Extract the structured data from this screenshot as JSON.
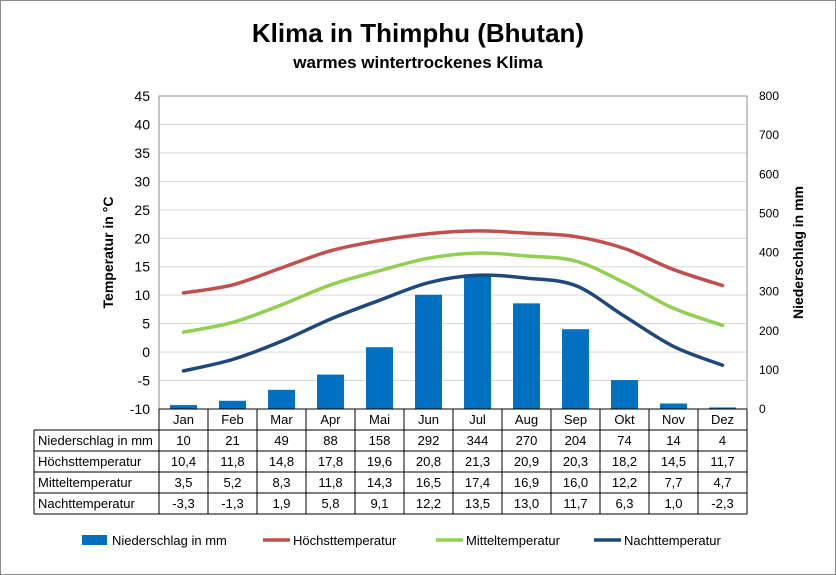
{
  "title": "Klima in Thimphu (Bhutan)",
  "subtitle": "warmes wintertrockenes Klima",
  "chart_data": {
    "type": "bar+line",
    "categories": [
      "Jan",
      "Feb",
      "Mar",
      "Apr",
      "Mai",
      "Jun",
      "Jul",
      "Aug",
      "Sep",
      "Okt",
      "Nov",
      "Dez"
    ],
    "ylabel_left": "Temperatur in °C",
    "ylabel_right": "Niederschlag in mm",
    "ylim_left": [
      -10,
      45
    ],
    "yticks_left": [
      "45",
      "40",
      "35",
      "30",
      "25",
      "20",
      "15",
      "10",
      "5",
      "0",
      "-5",
      "-10"
    ],
    "ylim_right": [
      0,
      800
    ],
    "yticks_right": [
      "800",
      "700",
      "600",
      "500",
      "400",
      "300",
      "200",
      "100",
      "0"
    ],
    "grid": "horizontal",
    "legend_position": "bottom",
    "bars": {
      "name": "Niederschlag in mm",
      "axis": "right",
      "color": "#0070c0",
      "values": [
        10,
        21,
        49,
        88,
        158,
        292,
        344,
        270,
        204,
        74,
        14,
        4
      ],
      "labels": [
        "10",
        "21",
        "49",
        "88",
        "158",
        "292",
        "344",
        "270",
        "204",
        "74",
        "14",
        "4"
      ]
    },
    "series": [
      {
        "name": "Höchsttemperatur",
        "axis": "left",
        "color": "#c0504d",
        "values": [
          10.4,
          11.8,
          14.8,
          17.8,
          19.6,
          20.8,
          21.3,
          20.9,
          20.3,
          18.2,
          14.5,
          11.7
        ],
        "labels": [
          "10,4",
          "11,8",
          "14,8",
          "17,8",
          "19,6",
          "20,8",
          "21,3",
          "20,9",
          "20,3",
          "18,2",
          "14,5",
          "11,7"
        ]
      },
      {
        "name": "Mitteltemperatur",
        "axis": "left",
        "color": "#92d050",
        "values": [
          3.5,
          5.2,
          8.3,
          11.8,
          14.3,
          16.5,
          17.4,
          16.9,
          16.0,
          12.2,
          7.7,
          4.7
        ],
        "labels": [
          "3,5",
          "5,2",
          "8,3",
          "11,8",
          "14,3",
          "16,5",
          "17,4",
          "16,9",
          "16,0",
          "12,2",
          "7,7",
          "4,7"
        ]
      },
      {
        "name": "Nachttemperatur",
        "axis": "left",
        "color": "#1f497d",
        "values": [
          -3.3,
          -1.3,
          1.9,
          5.8,
          9.1,
          12.2,
          13.5,
          13.0,
          11.7,
          6.3,
          1.0,
          -2.3
        ],
        "labels": [
          "-3,3",
          "-1,3",
          "1,9",
          "5,8",
          "9,1",
          "12,2",
          "13,5",
          "13,0",
          "11,7",
          "6,3",
          "1,0",
          "-2,3"
        ]
      }
    ]
  }
}
